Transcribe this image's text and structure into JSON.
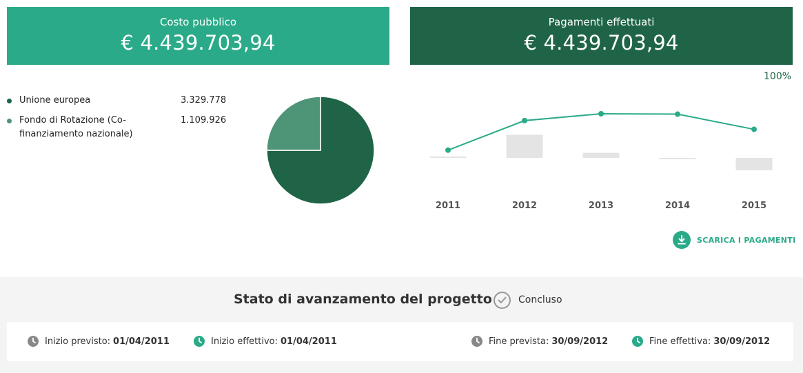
{
  "costo": {
    "label": "Costo pubblico",
    "value": "€ 4.439.703,94"
  },
  "pagamenti": {
    "label": "Pagamenti effettuati",
    "value": "€ 4.439.703,94",
    "percent": "100%"
  },
  "finanziamenti": [
    {
      "name": "Unione europea",
      "value": "3.329.778",
      "color": "#1f6447"
    },
    {
      "name": "Fondo di Rotazione (Co-finanziamento nazionale)",
      "value": "1.109.926",
      "color": "#4e9577"
    }
  ],
  "chart_data": [
    {
      "type": "pie",
      "categories": [
        "Unione europea",
        "Fondo di Rotazione (Co-finanziamento nazionale)"
      ],
      "values": [
        3329778,
        1109926
      ],
      "colors": [
        "#1f6447",
        "#4e9577"
      ]
    },
    {
      "type": "line",
      "x": [
        "2011",
        "2012",
        "2013",
        "2014",
        "2015"
      ],
      "series": [
        {
          "values": [
            4,
            82,
            100,
            99,
            59
          ],
          "color": "#2aaa88"
        }
      ],
      "bars": [
        4,
        78,
        17,
        -2,
        -42
      ],
      "bar_color": "#e4e4e4"
    }
  ],
  "download": {
    "label": "SCARICA I PAGAMENTI",
    "icon": "download-icon"
  },
  "stato": {
    "title": "Stato di avanzamento del progetto",
    "status": "Concluso",
    "icon": "check-circle-icon"
  },
  "date": [
    {
      "label": "Inizio previsto:",
      "value": "01/04/2011",
      "color": "#888888"
    },
    {
      "label": "Inizio effettivo:",
      "value": "01/04/2011",
      "color": "#2aaa88"
    },
    {
      "label": "Fine prevista:",
      "value": "30/09/2012",
      "color": "#888888"
    },
    {
      "label": "Fine effettiva:",
      "value": "30/09/2012",
      "color": "#2aaa88"
    }
  ]
}
